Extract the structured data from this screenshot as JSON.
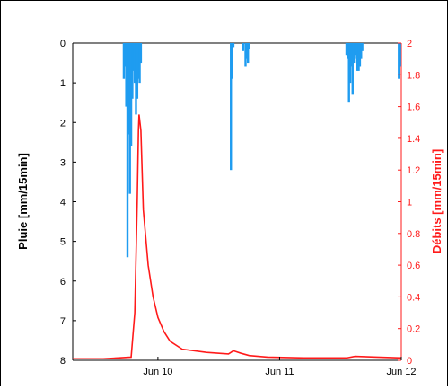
{
  "chart_data": {
    "type": "bar+line",
    "xlabel": "",
    "ylabel_left": "Pluie [mm/15min]",
    "ylabel_right": "Débits [mm/15min]",
    "x_tick_labels": [
      "Jun 10",
      "Jun 11",
      "Jun 12"
    ],
    "xlim_days": [
      9.3,
      12.0
    ],
    "y_left": {
      "lim": [
        0,
        8
      ],
      "ticks": [
        0,
        1,
        2,
        3,
        4,
        5,
        6,
        7,
        8
      ],
      "inverted": true,
      "color": "#1f9cf0"
    },
    "y_right": {
      "lim": [
        0,
        2
      ],
      "ticks": [
        0,
        0.2,
        0.4,
        0.6,
        0.8,
        1,
        1.2,
        1.4,
        1.6,
        1.8,
        2
      ],
      "color": "#ff1a1a"
    },
    "series": [
      {
        "type": "bar",
        "axis": "left",
        "x_days": [
          9.72,
          9.73,
          9.74,
          9.75,
          9.76,
          9.77,
          9.78,
          9.79,
          9.8,
          9.81,
          9.82,
          9.83,
          9.84,
          9.85,
          9.86,
          10.6,
          10.61,
          10.62,
          10.63,
          10.64,
          10.65,
          10.66,
          10.67,
          10.68,
          10.69,
          10.7,
          10.71,
          10.72,
          10.73,
          10.74,
          10.75,
          11.55,
          11.56,
          11.57,
          11.58,
          11.59,
          11.6,
          11.61,
          11.62,
          11.63,
          11.64,
          11.65,
          11.66,
          11.67,
          11.68,
          11.69,
          11.98,
          11.99
        ],
        "values": [
          0.9,
          0.6,
          1.6,
          5.4,
          2.3,
          3.8,
          2.6,
          1.4,
          0.7,
          1.0,
          1.8,
          1.4,
          0.9,
          1.0,
          0.5,
          3.2,
          0.9,
          0.1,
          0.0,
          0.0,
          0.0,
          0.0,
          0.0,
          0.0,
          0.0,
          0.2,
          0.0,
          0.6,
          0.4,
          0.5,
          0.15,
          0.3,
          0.4,
          1.5,
          1.0,
          0.6,
          1.3,
          0.5,
          0.3,
          0.4,
          0.7,
          0.7,
          0.6,
          0.4,
          0.2,
          0.0,
          0.9,
          0.6
        ]
      },
      {
        "type": "line",
        "axis": "right",
        "x_days": [
          9.3,
          9.55,
          9.78,
          9.81,
          9.83,
          9.84,
          9.845,
          9.86,
          9.88,
          9.92,
          9.96,
          10.0,
          10.05,
          10.1,
          10.2,
          10.4,
          10.58,
          10.6,
          10.62,
          10.64,
          10.68,
          10.75,
          10.9,
          11.2,
          11.55,
          11.62,
          11.8,
          12.0
        ],
        "values": [
          0.01,
          0.01,
          0.02,
          0.3,
          1.0,
          1.45,
          1.55,
          1.45,
          0.95,
          0.6,
          0.4,
          0.27,
          0.18,
          0.12,
          0.07,
          0.05,
          0.04,
          0.05,
          0.06,
          0.055,
          0.045,
          0.03,
          0.02,
          0.015,
          0.015,
          0.025,
          0.02,
          0.015
        ]
      }
    ],
    "grid": false
  }
}
